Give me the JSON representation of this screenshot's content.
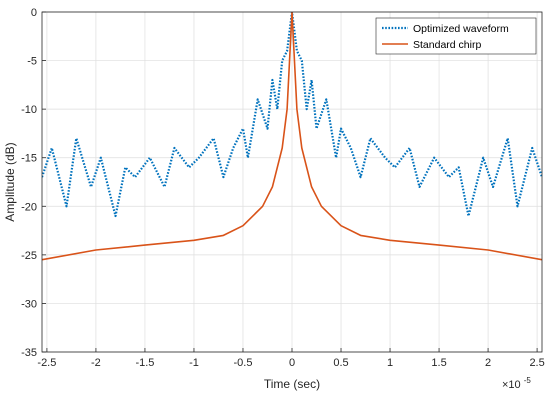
{
  "chart_data": {
    "type": "line",
    "title": "",
    "xlabel": "Time (sec)",
    "ylabel": "Amplitude (dB)",
    "x_exponent_label": "×10",
    "x_exponent_power": "-5",
    "xlim": [
      -2.55,
      2.55
    ],
    "ylim": [
      -35,
      0
    ],
    "xticks": [
      -2.5,
      -2,
      -1.5,
      -1,
      -0.5,
      0,
      0.5,
      1,
      1.5,
      2,
      2.5
    ],
    "xtick_labels": [
      "-2.5",
      "-2",
      "-1.5",
      "-1",
      "-0.5",
      "0",
      "0.5",
      "1",
      "1.5",
      "2",
      "2.5"
    ],
    "yticks": [
      0,
      -5,
      -10,
      -15,
      -20,
      -25,
      -30,
      -35
    ],
    "ytick_labels": [
      "0",
      "-5",
      "-10",
      "-15",
      "-20",
      "-25",
      "-30",
      "-35"
    ],
    "grid": true,
    "legend_position": "top-right",
    "series": [
      {
        "name": "Optimized waveform",
        "color": "#0072BD",
        "style": "dotted",
        "x": [
          -2.55,
          -2.45,
          -2.3,
          -2.2,
          -2.05,
          -1.95,
          -1.8,
          -1.7,
          -1.6,
          -1.45,
          -1.3,
          -1.2,
          -1.05,
          -0.95,
          -0.8,
          -0.7,
          -0.6,
          -0.5,
          -0.45,
          -0.35,
          -0.25,
          -0.2,
          -0.15,
          -0.1,
          -0.05,
          0,
          0.05,
          0.1,
          0.15,
          0.2,
          0.25,
          0.35,
          0.45,
          0.5,
          0.6,
          0.7,
          0.8,
          0.95,
          1.05,
          1.2,
          1.3,
          1.45,
          1.6,
          1.7,
          1.8,
          1.95,
          2.05,
          2.2,
          2.3,
          2.45,
          2.55
        ],
        "y": [
          -17,
          -14,
          -20,
          -13,
          -18,
          -15,
          -21,
          -16,
          -17,
          -15,
          -18,
          -14,
          -16,
          -15,
          -13,
          -17,
          -14,
          -12,
          -15,
          -9,
          -12,
          -7,
          -10,
          -5,
          -4,
          0,
          -4,
          -5,
          -10,
          -7,
          -12,
          -9,
          -15,
          -12,
          -14,
          -17,
          -13,
          -15,
          -16,
          -14,
          -18,
          -15,
          -17,
          -16,
          -21,
          -15,
          -18,
          -13,
          -20,
          -14,
          -17
        ]
      },
      {
        "name": "Standard chirp",
        "color": "#D95319",
        "style": "solid",
        "x": [
          -2.55,
          -2.0,
          -1.5,
          -1.0,
          -0.7,
          -0.5,
          -0.3,
          -0.2,
          -0.1,
          -0.05,
          0,
          0.05,
          0.1,
          0.2,
          0.3,
          0.5,
          0.7,
          1.0,
          1.5,
          2.0,
          2.55
        ],
        "y": [
          -25.5,
          -24.5,
          -24,
          -23.5,
          -23,
          -22,
          -20,
          -18,
          -14,
          -10,
          0,
          -10,
          -14,
          -18,
          -20,
          -22,
          -23,
          -23.5,
          -24,
          -24.5,
          -25.5
        ]
      }
    ]
  }
}
